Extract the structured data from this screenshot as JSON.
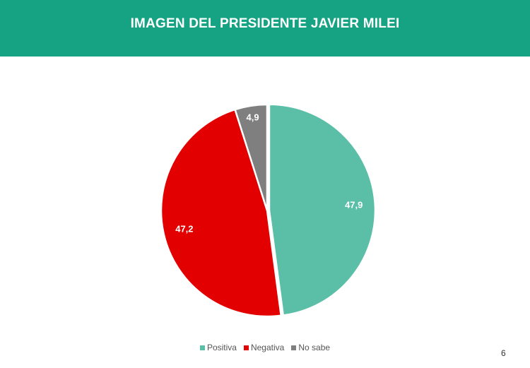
{
  "header": {
    "title": "IMAGEN DEL PRESIDENTE JAVIER MILEI",
    "background": "#16a384"
  },
  "chart_data": {
    "type": "pie",
    "categories": [
      "Positiva",
      "Negativa",
      "No sabe"
    ],
    "values": [
      47.9,
      47.2,
      4.9
    ],
    "value_labels": [
      "47,9",
      "47,2",
      "4,9"
    ],
    "colors": [
      "#5bbfa8",
      "#e30000",
      "#7f7f7f"
    ],
    "start": "top, clockwise",
    "legend_position": "bottom"
  },
  "legend": {
    "items": [
      {
        "label": "Positiva",
        "color": "#5bbfa8"
      },
      {
        "label": "Negativa",
        "color": "#e30000"
      },
      {
        "label": "No sabe",
        "color": "#7f7f7f"
      }
    ]
  },
  "footer": {
    "page_number": "6"
  }
}
